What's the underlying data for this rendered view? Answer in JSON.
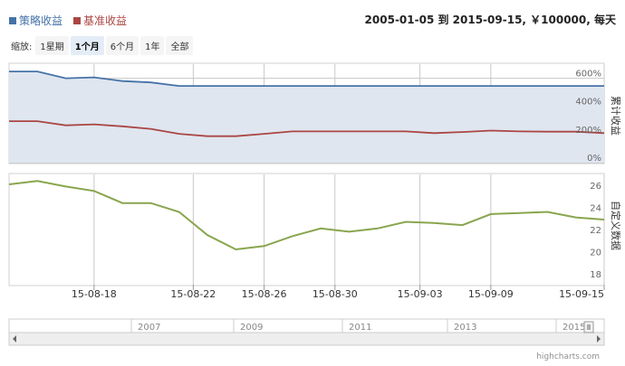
{
  "legend": [
    {
      "label": "策略收益",
      "color": "#4572a7"
    },
    {
      "label": "基准收益",
      "color": "#aa4643"
    }
  ],
  "range_text": "2005-01-05 到 2015-09-15, ￥100000, 每天",
  "zoom": {
    "label": "缩放:",
    "buttons": [
      "1星期",
      "1个月",
      "6个月",
      "1年",
      "全部"
    ],
    "active": "1个月"
  },
  "chart_data": [
    {
      "type": "area",
      "ylabel": "累计收益",
      "ylim": [
        0,
        700
      ],
      "yticks": [
        "0%",
        "200%",
        "400%",
        "600%"
      ],
      "x": [
        "15-08-13",
        "15-08-14",
        "15-08-17",
        "15-08-18",
        "15-08-19",
        "15-08-20",
        "15-08-21",
        "15-08-24",
        "15-08-25",
        "15-08-26",
        "15-08-27",
        "15-08-28",
        "15-08-31",
        "15-09-01",
        "15-09-02",
        "15-09-07",
        "15-09-08",
        "15-09-09",
        "15-09-10",
        "15-09-11",
        "15-09-14",
        "15-09-15"
      ],
      "series": [
        {
          "name": "策略收益",
          "color": "#4572a7",
          "values": [
            648,
            648,
            600,
            606,
            580,
            570,
            545,
            545,
            545,
            545,
            545,
            545,
            545,
            545,
            545,
            545,
            545,
            545,
            545,
            545,
            545,
            545
          ]
        },
        {
          "name": "基准收益",
          "color": "#aa4643",
          "values": [
            295,
            295,
            265,
            272,
            258,
            240,
            205,
            188,
            188,
            205,
            222,
            222,
            222,
            222,
            222,
            210,
            218,
            228,
            222,
            220,
            220,
            210
          ]
        }
      ]
    },
    {
      "type": "line",
      "ylabel": "自定义数据",
      "ylim": [
        17,
        27
      ],
      "yticks": [
        "18",
        "20",
        "22",
        "24",
        "26"
      ],
      "x": [
        "15-08-13",
        "15-08-14",
        "15-08-17",
        "15-08-18",
        "15-08-19",
        "15-08-20",
        "15-08-21",
        "15-08-24",
        "15-08-25",
        "15-08-26",
        "15-08-27",
        "15-08-28",
        "15-08-31",
        "15-09-01",
        "15-09-02",
        "15-09-07",
        "15-09-08",
        "15-09-09",
        "15-09-10",
        "15-09-11",
        "15-09-14",
        "15-09-15"
      ],
      "xtick_labels": [
        "15-08-18",
        "15-08-22",
        "15-08-26",
        "15-08-30",
        "15-09-03",
        "15-09-09",
        "15-09-15"
      ],
      "series": [
        {
          "color": "#89a54e",
          "values": [
            26.1,
            26.4,
            25.9,
            25.5,
            24.4,
            24.4,
            23.6,
            21.5,
            20.2,
            20.5,
            21.4,
            22.1,
            21.8,
            22.1,
            22.7,
            22.6,
            22.4,
            23.4,
            23.5,
            23.6,
            23.1,
            22.9
          ]
        }
      ]
    }
  ],
  "navigator": {
    "year_labels": [
      "2007",
      "2009",
      "2011",
      "2013",
      "2015"
    ]
  },
  "credit": "highcharts.com"
}
